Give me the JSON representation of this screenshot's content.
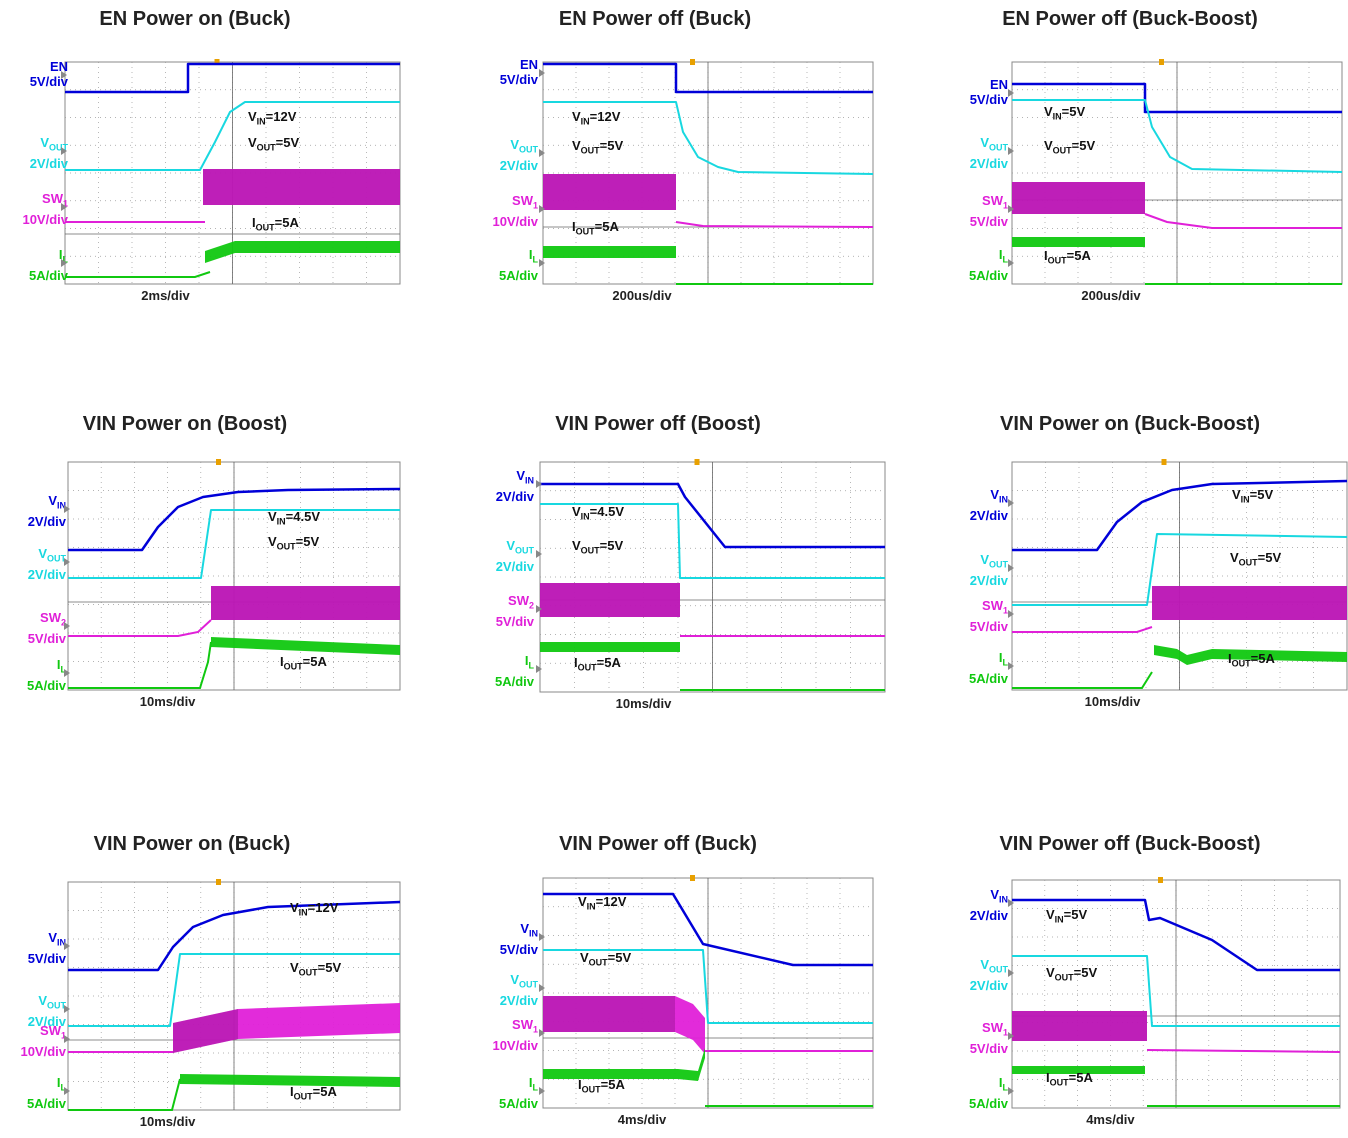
{
  "colors": {
    "blue": "#0000d8",
    "cyan": "#18d8e0",
    "magenta": "#e020d8",
    "green": "#10c810",
    "grid": "#9a9a9a"
  },
  "panels": [
    {
      "title": "EN Power on (Buck)",
      "timebase": "2ms/div",
      "channels": [
        {
          "key": "ch_blue",
          "name": "EN",
          "unit": "5V/div",
          "color": "#0000d8"
        },
        {
          "key": "ch_cyan",
          "name": "V",
          "sub": "OUT",
          "unit": "2V/div",
          "color": "#18d8e0"
        },
        {
          "key": "ch_mag",
          "name": "SW",
          "sub": "1",
          "unit": "10V/div",
          "color": "#e020d8"
        },
        {
          "key": "ch_green",
          "name": "I",
          "sub": "L",
          "unit": "5A/div",
          "color": "#10c810"
        }
      ],
      "annotations": [
        {
          "main": "V",
          "sub": "IN",
          "rest": "=12V"
        },
        {
          "main": "V",
          "sub": "OUT",
          "rest": "=5V"
        },
        {
          "main": "I",
          "sub": "OUT",
          "rest": "=5A"
        }
      ]
    },
    {
      "title": "EN Power off (Buck)",
      "timebase": "200us/div",
      "channels": [
        {
          "key": "ch_blue",
          "name": "EN",
          "unit": "5V/div",
          "color": "#0000d8"
        },
        {
          "key": "ch_cyan",
          "name": "V",
          "sub": "OUT",
          "unit": "2V/div",
          "color": "#18d8e0"
        },
        {
          "key": "ch_mag",
          "name": "SW",
          "sub": "1",
          "unit": "10V/div",
          "color": "#e020d8"
        },
        {
          "key": "ch_green",
          "name": "I",
          "sub": "L",
          "unit": "5A/div",
          "color": "#10c810"
        }
      ],
      "annotations": [
        {
          "main": "V",
          "sub": "IN",
          "rest": "=12V"
        },
        {
          "main": "V",
          "sub": "OUT",
          "rest": "=5V"
        },
        {
          "main": "I",
          "sub": "OUT",
          "rest": "=5A"
        }
      ]
    },
    {
      "title": "EN Power off (Buck-Boost)",
      "timebase": "200us/div",
      "channels": [
        {
          "key": "ch_blue",
          "name": "EN",
          "unit": "5V/div",
          "color": "#0000d8"
        },
        {
          "key": "ch_cyan",
          "name": "V",
          "sub": "OUT",
          "unit": "2V/div",
          "color": "#18d8e0"
        },
        {
          "key": "ch_mag",
          "name": "SW",
          "sub": "1",
          "unit": "5V/div",
          "color": "#e020d8"
        },
        {
          "key": "ch_green",
          "name": "I",
          "sub": "L",
          "unit": "5A/div",
          "color": "#10c810"
        }
      ],
      "annotations": [
        {
          "main": "V",
          "sub": "IN",
          "rest": "=5V"
        },
        {
          "main": "V",
          "sub": "OUT",
          "rest": "=5V"
        },
        {
          "main": "I",
          "sub": "OUT",
          "rest": "=5A"
        }
      ]
    },
    {
      "title": "VIN Power on (Boost)",
      "timebase": "10ms/div",
      "channels": [
        {
          "key": "ch_blue",
          "name": "V",
          "sub": "IN",
          "unit": "2V/div",
          "color": "#0000d8"
        },
        {
          "key": "ch_cyan",
          "name": "V",
          "sub": "OUT",
          "unit": "2V/div",
          "color": "#18d8e0"
        },
        {
          "key": "ch_mag",
          "name": "SW",
          "sub": "2",
          "unit": "5V/div",
          "color": "#e020d8"
        },
        {
          "key": "ch_green",
          "name": "I",
          "sub": "L",
          "unit": "5A/div",
          "color": "#10c810"
        }
      ],
      "annotations": [
        {
          "main": "V",
          "sub": "IN",
          "rest": "=4.5V"
        },
        {
          "main": "V",
          "sub": "OUT",
          "rest": "=5V"
        },
        {
          "main": "I",
          "sub": "OUT",
          "rest": "=5A"
        }
      ]
    },
    {
      "title": "VIN Power off (Boost)",
      "timebase": "10ms/div",
      "channels": [
        {
          "key": "ch_blue",
          "name": "V",
          "sub": "IN",
          "unit": "2V/div",
          "color": "#0000d8"
        },
        {
          "key": "ch_cyan",
          "name": "V",
          "sub": "OUT",
          "unit": "2V/div",
          "color": "#18d8e0"
        },
        {
          "key": "ch_mag",
          "name": "SW",
          "sub": "2",
          "unit": "5V/div",
          "color": "#e020d8"
        },
        {
          "key": "ch_green",
          "name": "I",
          "sub": "L",
          "unit": "5A/div",
          "color": "#10c810"
        }
      ],
      "annotations": [
        {
          "main": "V",
          "sub": "IN",
          "rest": "=4.5V"
        },
        {
          "main": "V",
          "sub": "OUT",
          "rest": "=5V"
        },
        {
          "main": "I",
          "sub": "OUT",
          "rest": "=5A"
        }
      ]
    },
    {
      "title": "VIN Power on (Buck-Boost)",
      "timebase": "10ms/div",
      "channels": [
        {
          "key": "ch_blue",
          "name": "V",
          "sub": "IN",
          "unit": "2V/div",
          "color": "#0000d8"
        },
        {
          "key": "ch_cyan",
          "name": "V",
          "sub": "OUT",
          "unit": "2V/div",
          "color": "#18d8e0"
        },
        {
          "key": "ch_mag",
          "name": "SW",
          "sub": "1",
          "unit": "5V/div",
          "color": "#e020d8"
        },
        {
          "key": "ch_green",
          "name": "I",
          "sub": "L",
          "unit": "5A/div",
          "color": "#10c810"
        }
      ],
      "annotations": [
        {
          "main": "V",
          "sub": "IN",
          "rest": "=5V"
        },
        {
          "main": "V",
          "sub": "OUT",
          "rest": "=5V"
        },
        {
          "main": "I",
          "sub": "OUT",
          "rest": "=5A"
        }
      ]
    },
    {
      "title": "VIN Power on (Buck)",
      "timebase": "10ms/div",
      "channels": [
        {
          "key": "ch_blue",
          "name": "V",
          "sub": "IN",
          "unit": "5V/div",
          "color": "#0000d8"
        },
        {
          "key": "ch_cyan",
          "name": "V",
          "sub": "OUT",
          "unit": "2V/div",
          "color": "#18d8e0"
        },
        {
          "key": "ch_mag",
          "name": "SW",
          "sub": "1",
          "unit": "10V/div",
          "color": "#e020d8"
        },
        {
          "key": "ch_green",
          "name": "I",
          "sub": "L",
          "unit": "5A/div",
          "color": "#10c810"
        }
      ],
      "annotations": [
        {
          "main": "V",
          "sub": "IN",
          "rest": "=12V"
        },
        {
          "main": "V",
          "sub": "OUT",
          "rest": "=5V"
        },
        {
          "main": "I",
          "sub": "OUT",
          "rest": "=5A"
        }
      ]
    },
    {
      "title": "VIN Power off (Buck)",
      "timebase": "4ms/div",
      "channels": [
        {
          "key": "ch_blue",
          "name": "V",
          "sub": "IN",
          "unit": "5V/div",
          "color": "#0000d8"
        },
        {
          "key": "ch_cyan",
          "name": "V",
          "sub": "OUT",
          "unit": "2V/div",
          "color": "#18d8e0"
        },
        {
          "key": "ch_mag",
          "name": "SW",
          "sub": "1",
          "unit": "10V/div",
          "color": "#e020d8"
        },
        {
          "key": "ch_green",
          "name": "I",
          "sub": "L",
          "unit": "5A/div",
          "color": "#10c810"
        }
      ],
      "annotations": [
        {
          "main": "V",
          "sub": "IN",
          "rest": "=12V"
        },
        {
          "main": "V",
          "sub": "OUT",
          "rest": "=5V"
        },
        {
          "main": "I",
          "sub": "OUT",
          "rest": "=5A"
        }
      ]
    },
    {
      "title": "VIN Power off (Buck-Boost)",
      "timebase": "4ms/div",
      "channels": [
        {
          "key": "ch_blue",
          "name": "V",
          "sub": "IN",
          "unit": "2V/div",
          "color": "#0000d8"
        },
        {
          "key": "ch_cyan",
          "name": "V",
          "sub": "OUT",
          "unit": "2V/div",
          "color": "#18d8e0"
        },
        {
          "key": "ch_mag",
          "name": "SW",
          "sub": "1",
          "unit": "5V/div",
          "color": "#e020d8"
        },
        {
          "key": "ch_green",
          "name": "I",
          "sub": "L",
          "unit": "5A/div",
          "color": "#10c810"
        }
      ],
      "annotations": [
        {
          "main": "V",
          "sub": "IN",
          "rest": "=5V"
        },
        {
          "main": "V",
          "sub": "OUT",
          "rest": "=5V"
        },
        {
          "main": "I",
          "sub": "OUT",
          "rest": "=5A"
        }
      ]
    }
  ],
  "chart_data": {
    "type": "line",
    "grid": true,
    "x_divisions": 10,
    "y_divisions": 8
  }
}
